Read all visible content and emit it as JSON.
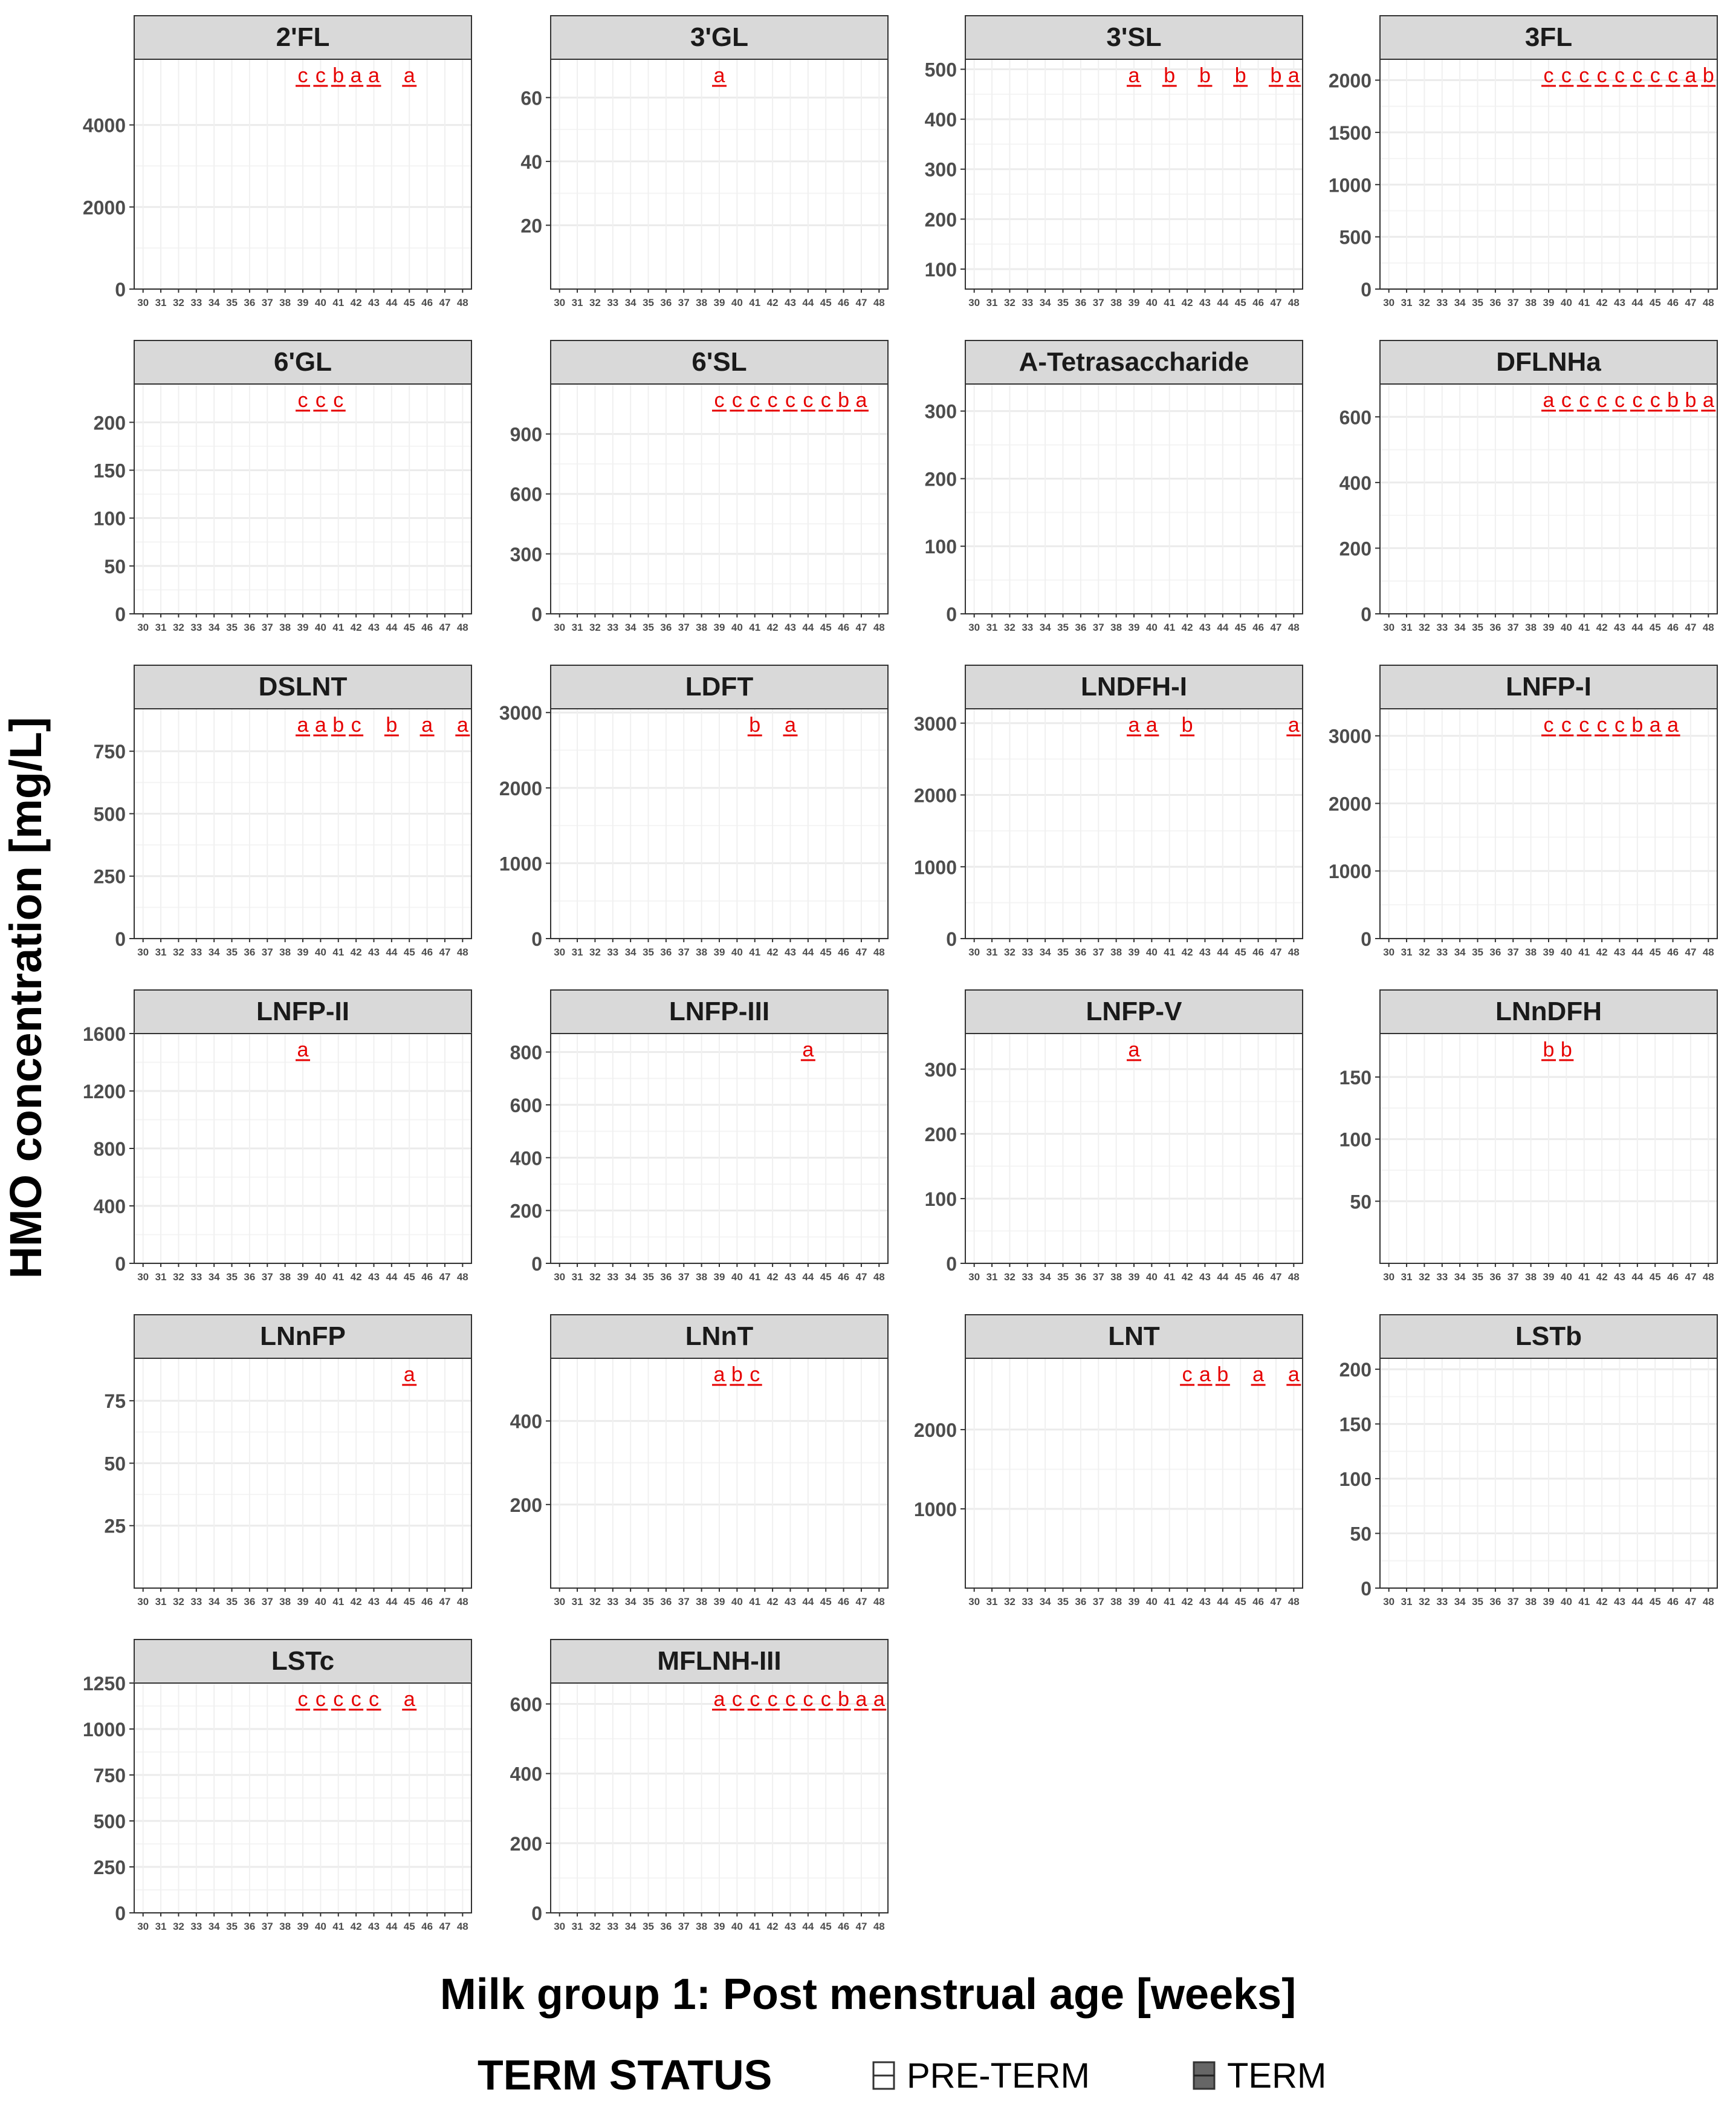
{
  "figure": {
    "ylabel": "HMO concentration [mg/L]",
    "xlabel": "Milk group 1: Post menstrual age [weeks]",
    "legend_title": "TERM STATUS",
    "legend_items": [
      {
        "label": "PRE-TERM",
        "fill": "#ffffff"
      },
      {
        "label": "TERM",
        "fill": "#666666"
      }
    ]
  },
  "colors": {
    "panel_header": "#d9d9d9",
    "sig_label": "#e60000",
    "term_box": "#666666",
    "preterm_box": "#ffffff",
    "grid": "#ebebeb"
  },
  "chart_data": {
    "type": "boxplot",
    "x_ticks": [
      "30",
      "31",
      "32",
      "33",
      "34",
      "35",
      "36",
      "37",
      "38",
      "39",
      "40",
      "41",
      "42",
      "43",
      "44",
      "45",
      "46",
      "47",
      "48"
    ],
    "panels": [
      {
        "title": "2'FL",
        "ylim": [
          0,
          5600
        ],
        "yticks": [
          0,
          2000,
          4000
        ],
        "sig": [
          {
            "x": "39",
            "label": "c"
          },
          {
            "x": "40",
            "label": "c"
          },
          {
            "x": "41",
            "label": "b"
          },
          {
            "x": "42",
            "label": "a"
          },
          {
            "x": "43",
            "label": "a"
          },
          {
            "x": "45",
            "label": "a"
          }
        ]
      },
      {
        "title": "3'GL",
        "ylim": [
          0,
          72
        ],
        "yticks": [
          20,
          40,
          60
        ],
        "sig": [
          {
            "x": "39",
            "label": "a"
          }
        ]
      },
      {
        "title": "3'SL",
        "ylim": [
          60,
          520
        ],
        "yticks": [
          100,
          200,
          300,
          400,
          500
        ],
        "sig": [
          {
            "x": "39",
            "label": "a"
          },
          {
            "x": "41",
            "label": "b"
          },
          {
            "x": "43",
            "label": "b"
          },
          {
            "x": "45",
            "label": "b"
          },
          {
            "x": "47",
            "label": "b"
          },
          {
            "x": "48",
            "label": "a"
          }
        ]
      },
      {
        "title": "3FL",
        "ylim": [
          0,
          2200
        ],
        "yticks": [
          0,
          500,
          1000,
          1500,
          2000
        ],
        "sig": [
          {
            "x": "39",
            "label": "c"
          },
          {
            "x": "40",
            "label": "c"
          },
          {
            "x": "41",
            "label": "c"
          },
          {
            "x": "42",
            "label": "c"
          },
          {
            "x": "43",
            "label": "c"
          },
          {
            "x": "44",
            "label": "c"
          },
          {
            "x": "45",
            "label": "c"
          },
          {
            "x": "46",
            "label": "c"
          },
          {
            "x": "47",
            "label": "a"
          },
          {
            "x": "48",
            "label": "b"
          }
        ]
      },
      {
        "title": "6'GL",
        "ylim": [
          0,
          240
        ],
        "yticks": [
          0,
          50,
          100,
          150,
          200
        ],
        "sig": [
          {
            "x": "39",
            "label": "c"
          },
          {
            "x": "40",
            "label": "c"
          },
          {
            "x": "41",
            "label": "c"
          }
        ]
      },
      {
        "title": "6'SL",
        "ylim": [
          0,
          1150
        ],
        "yticks": [
          0,
          300,
          600,
          900
        ],
        "sig": [
          {
            "x": "39",
            "label": "c"
          },
          {
            "x": "40",
            "label": "c"
          },
          {
            "x": "41",
            "label": "c"
          },
          {
            "x": "42",
            "label": "c"
          },
          {
            "x": "43",
            "label": "c"
          },
          {
            "x": "44",
            "label": "c"
          },
          {
            "x": "45",
            "label": "c"
          },
          {
            "x": "46",
            "label": "b"
          },
          {
            "x": "47",
            "label": "a"
          }
        ]
      },
      {
        "title": "A-Tetrasaccharide",
        "ylim": [
          0,
          340
        ],
        "yticks": [
          0,
          100,
          200,
          300
        ],
        "sig": []
      },
      {
        "title": "DFLNHa",
        "ylim": [
          0,
          700
        ],
        "yticks": [
          0,
          200,
          400,
          600
        ],
        "sig": [
          {
            "x": "39",
            "label": "a"
          },
          {
            "x": "40",
            "label": "c"
          },
          {
            "x": "41",
            "label": "c"
          },
          {
            "x": "42",
            "label": "c"
          },
          {
            "x": "43",
            "label": "c"
          },
          {
            "x": "44",
            "label": "c"
          },
          {
            "x": "45",
            "label": "c"
          },
          {
            "x": "46",
            "label": "b"
          },
          {
            "x": "47",
            "label": "b"
          },
          {
            "x": "48",
            "label": "a"
          }
        ]
      },
      {
        "title": "DSLNT",
        "ylim": [
          0,
          920
        ],
        "yticks": [
          0,
          250,
          500,
          750
        ],
        "sig": [
          {
            "x": "39",
            "label": "a"
          },
          {
            "x": "40",
            "label": "a"
          },
          {
            "x": "41",
            "label": "b"
          },
          {
            "x": "42",
            "label": "c"
          },
          {
            "x": "44",
            "label": "b"
          },
          {
            "x": "46",
            "label": "a"
          },
          {
            "x": "48",
            "label": "a"
          }
        ]
      },
      {
        "title": "LDFT",
        "ylim": [
          0,
          3050
        ],
        "yticks": [
          0,
          1000,
          2000,
          3000
        ],
        "sig": [
          {
            "x": "41",
            "label": "b"
          },
          {
            "x": "43",
            "label": "a"
          }
        ]
      },
      {
        "title": "LNDFH-I",
        "ylim": [
          0,
          3200
        ],
        "yticks": [
          0,
          1000,
          2000,
          3000
        ],
        "sig": [
          {
            "x": "39",
            "label": "a"
          },
          {
            "x": "40",
            "label": "a"
          },
          {
            "x": "42",
            "label": "b"
          },
          {
            "x": "48",
            "label": "a"
          }
        ]
      },
      {
        "title": "LNFP-I",
        "ylim": [
          0,
          3400
        ],
        "yticks": [
          0,
          1000,
          2000,
          3000
        ],
        "sig": [
          {
            "x": "39",
            "label": "c"
          },
          {
            "x": "40",
            "label": "c"
          },
          {
            "x": "41",
            "label": "c"
          },
          {
            "x": "42",
            "label": "c"
          },
          {
            "x": "43",
            "label": "c"
          },
          {
            "x": "44",
            "label": "b"
          },
          {
            "x": "45",
            "label": "a"
          },
          {
            "x": "46",
            "label": "a"
          }
        ]
      },
      {
        "title": "LNFP-II",
        "ylim": [
          0,
          1600
        ],
        "yticks": [
          0,
          400,
          800,
          1200,
          1600
        ],
        "sig": [
          {
            "x": "39",
            "label": "a"
          }
        ]
      },
      {
        "title": "LNFP-III",
        "ylim": [
          0,
          870
        ],
        "yticks": [
          0,
          200,
          400,
          600,
          800
        ],
        "sig": [
          {
            "x": "44",
            "label": "a"
          }
        ]
      },
      {
        "title": "LNFP-V",
        "ylim": [
          0,
          355
        ],
        "yticks": [
          0,
          100,
          200,
          300
        ],
        "sig": [
          {
            "x": "39",
            "label": "a"
          }
        ]
      },
      {
        "title": "LNnDFH",
        "ylim": [
          0,
          185
        ],
        "yticks": [
          50,
          100,
          150
        ],
        "sig": [
          {
            "x": "39",
            "label": "b"
          },
          {
            "x": "40",
            "label": "b"
          }
        ]
      },
      {
        "title": "LNnFP",
        "ylim": [
          0,
          92
        ],
        "yticks": [
          25,
          50,
          75
        ],
        "sig": [
          {
            "x": "45",
            "label": "a"
          }
        ]
      },
      {
        "title": "LNnT",
        "ylim": [
          0,
          550
        ],
        "yticks": [
          200,
          400
        ],
        "sig": [
          {
            "x": "39",
            "label": "a"
          },
          {
            "x": "40",
            "label": "b"
          },
          {
            "x": "41",
            "label": "c"
          }
        ]
      },
      {
        "title": "LNT",
        "ylim": [
          0,
          2900
        ],
        "yticks": [
          1000,
          2000
        ],
        "sig": [
          {
            "x": "42",
            "label": "c"
          },
          {
            "x": "43",
            "label": "a"
          },
          {
            "x": "44",
            "label": "b"
          },
          {
            "x": "46",
            "label": "a"
          },
          {
            "x": "48",
            "label": "a"
          }
        ]
      },
      {
        "title": "LSTb",
        "ylim": [
          0,
          210
        ],
        "yticks": [
          0,
          50,
          100,
          150,
          200
        ],
        "sig": []
      },
      {
        "title": "LSTc",
        "ylim": [
          0,
          1250
        ],
        "yticks": [
          0,
          250,
          500,
          750,
          1000,
          1250
        ],
        "sig": [
          {
            "x": "39",
            "label": "c"
          },
          {
            "x": "40",
            "label": "c"
          },
          {
            "x": "41",
            "label": "c"
          },
          {
            "x": "42",
            "label": "c"
          },
          {
            "x": "43",
            "label": "c"
          },
          {
            "x": "45",
            "label": "a"
          }
        ]
      },
      {
        "title": "MFLNH-III",
        "ylim": [
          0,
          660
        ],
        "yticks": [
          0,
          200,
          400,
          600
        ],
        "sig": [
          {
            "x": "39",
            "label": "a"
          },
          {
            "x": "40",
            "label": "c"
          },
          {
            "x": "41",
            "label": "c"
          },
          {
            "x": "42",
            "label": "c"
          },
          {
            "x": "43",
            "label": "c"
          },
          {
            "x": "44",
            "label": "c"
          },
          {
            "x": "45",
            "label": "c"
          },
          {
            "x": "46",
            "label": "b"
          },
          {
            "x": "47",
            "label": "a"
          },
          {
            "x": "48",
            "label": "a"
          }
        ]
      }
    ]
  }
}
